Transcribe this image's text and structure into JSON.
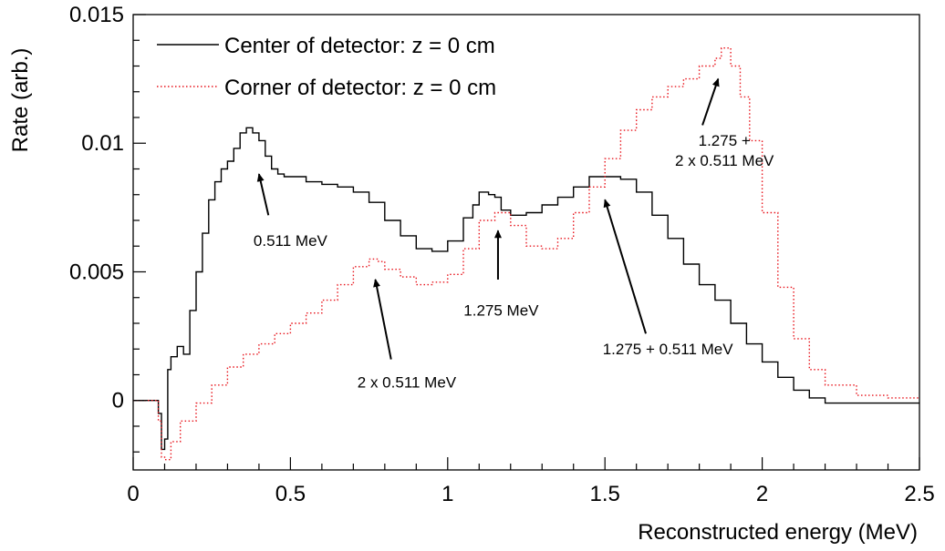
{
  "chart_data": {
    "type": "line",
    "title": "",
    "xlabel": "Reconstructed energy (MeV)",
    "ylabel": "Rate (arb.)",
    "xlim": [
      0,
      2.5
    ],
    "ylim": [
      -0.0027,
      0.015
    ],
    "x_ticks": [
      0,
      0.5,
      1,
      1.5,
      2,
      2.5
    ],
    "x_tick_labels": [
      "0",
      "0.5",
      "1",
      "1.5",
      "2",
      "2.5"
    ],
    "y_ticks": [
      0,
      0.005,
      0.01,
      0.015
    ],
    "y_tick_labels": [
      "0",
      "0.005",
      "0.01",
      "0.015"
    ],
    "grid": false,
    "legend_position": "top-left",
    "series": [
      {
        "name": "Center of detector: z = 0 cm",
        "color": "#000000",
        "style": "solid",
        "x": [
          0,
          0.07,
          0.08,
          0.09,
          0.1,
          0.11,
          0.12,
          0.14,
          0.16,
          0.18,
          0.2,
          0.22,
          0.24,
          0.26,
          0.28,
          0.3,
          0.32,
          0.34,
          0.36,
          0.38,
          0.4,
          0.42,
          0.44,
          0.46,
          0.48,
          0.5,
          0.55,
          0.6,
          0.65,
          0.7,
          0.75,
          0.8,
          0.85,
          0.9,
          0.95,
          1.0,
          1.05,
          1.08,
          1.1,
          1.13,
          1.15,
          1.17,
          1.2,
          1.25,
          1.3,
          1.35,
          1.4,
          1.45,
          1.5,
          1.55,
          1.6,
          1.65,
          1.7,
          1.75,
          1.8,
          1.85,
          1.9,
          1.95,
          2.0,
          2.05,
          2.1,
          2.15,
          2.2,
          2.3,
          2.4,
          2.5
        ],
        "y": [
          0,
          0,
          -0.0005,
          -0.0019,
          -0.0015,
          0.0012,
          0.0017,
          0.0021,
          0.0018,
          0.0035,
          0.005,
          0.0065,
          0.0078,
          0.0085,
          0.009,
          0.0093,
          0.0098,
          0.0104,
          0.0106,
          0.0104,
          0.0101,
          0.0095,
          0.009,
          0.0088,
          0.0087,
          0.0087,
          0.0085,
          0.0084,
          0.0083,
          0.0081,
          0.0077,
          0.007,
          0.0064,
          0.0059,
          0.0058,
          0.0062,
          0.0071,
          0.0076,
          0.0081,
          0.008,
          0.0079,
          0.0074,
          0.0072,
          0.0073,
          0.0076,
          0.0079,
          0.0083,
          0.0087,
          0.0087,
          0.0086,
          0.0081,
          0.0072,
          0.0063,
          0.0053,
          0.0045,
          0.0039,
          0.003,
          0.0022,
          0.0015,
          0.0009,
          0.0004,
          0.0001,
          -0.0001,
          -0.0001,
          -0.0001,
          -0.0001
        ]
      },
      {
        "name": "Corner of detector: z = 0 cm",
        "color": "#e8141c",
        "style": "dotted",
        "x": [
          0,
          0.07,
          0.08,
          0.09,
          0.1,
          0.12,
          0.15,
          0.2,
          0.25,
          0.3,
          0.35,
          0.4,
          0.45,
          0.5,
          0.55,
          0.6,
          0.65,
          0.7,
          0.75,
          0.78,
          0.8,
          0.85,
          0.9,
          0.95,
          1.0,
          1.05,
          1.1,
          1.15,
          1.2,
          1.25,
          1.3,
          1.35,
          1.4,
          1.45,
          1.5,
          1.55,
          1.6,
          1.65,
          1.7,
          1.75,
          1.8,
          1.85,
          1.87,
          1.9,
          1.93,
          1.96,
          2.0,
          2.05,
          2.1,
          2.15,
          2.2,
          2.3,
          2.4,
          2.5
        ],
        "y": [
          0,
          0,
          -0.0008,
          -0.0022,
          -0.0023,
          -0.0016,
          -0.0008,
          -0.0001,
          0.0006,
          0.0013,
          0.0018,
          0.0022,
          0.0026,
          0.003,
          0.0034,
          0.0039,
          0.0045,
          0.0052,
          0.0055,
          0.0054,
          0.0051,
          0.0048,
          0.0045,
          0.0046,
          0.0049,
          0.0059,
          0.007,
          0.0073,
          0.0068,
          0.006,
          0.0059,
          0.0063,
          0.0073,
          0.0083,
          0.0094,
          0.0105,
          0.0113,
          0.0118,
          0.0122,
          0.0125,
          0.013,
          0.0133,
          0.0137,
          0.013,
          0.0118,
          0.0101,
          0.0073,
          0.0044,
          0.0024,
          0.0012,
          0.0006,
          0.0002,
          0.0001,
          0.0001
        ]
      }
    ],
    "annotations": [
      {
        "lines": [
          "0.511 MeV"
        ],
        "text_x": 0.5,
        "text_y": 0.006,
        "arrow_from": [
          0.43,
          0.0072
        ],
        "arrow_to": [
          0.4,
          0.0088
        ]
      },
      {
        "lines": [
          "2 x 0.511 MeV"
        ],
        "text_x": 0.87,
        "text_y": 0.0005,
        "arrow_from": [
          0.82,
          0.0016
        ],
        "arrow_to": [
          0.77,
          0.0047
        ]
      },
      {
        "lines": [
          "1.275 MeV"
        ],
        "text_x": 1.17,
        "text_y": 0.0033,
        "arrow_from": [
          1.16,
          0.0047
        ],
        "arrow_to": [
          1.16,
          0.0066
        ]
      },
      {
        "lines": [
          "1.275 + 0.511 MeV"
        ],
        "text_x": 1.7,
        "text_y": 0.0018,
        "arrow_from": [
          1.63,
          0.0026
        ],
        "arrow_to": [
          1.5,
          0.0078
        ]
      },
      {
        "lines": [
          "1.275 +",
          "2 x 0.511 MeV"
        ],
        "text_x": 1.88,
        "text_y": 0.0099,
        "arrow_from": [
          1.81,
          0.0107
        ],
        "arrow_to": [
          1.86,
          0.0125
        ]
      }
    ]
  }
}
